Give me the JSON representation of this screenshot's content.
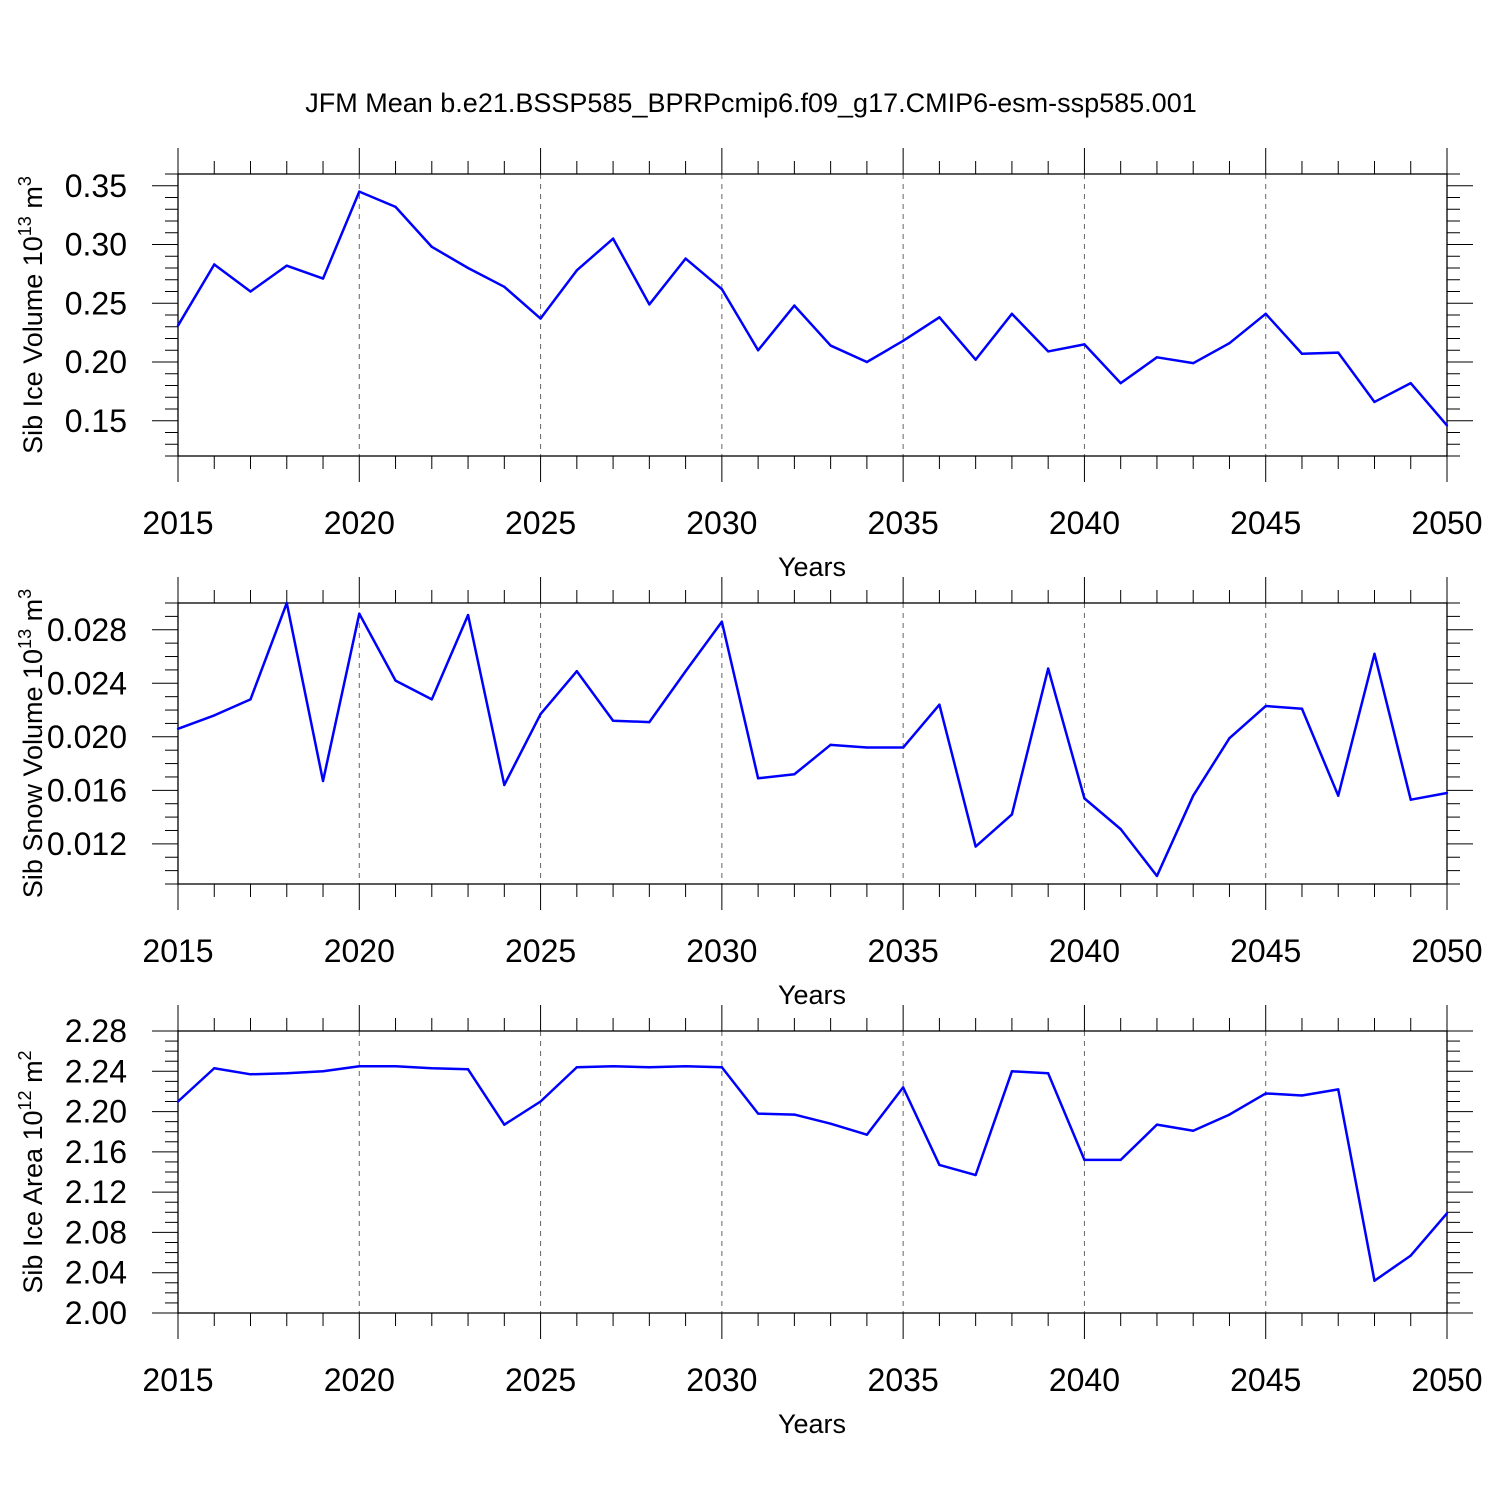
{
  "title": "JFM Mean b.e21.BSSP585_BPRPcmip6.f09_g17.CMIP6-esm-ssp585.001",
  "chart_data": [
    {
      "type": "line",
      "ylabel": "Sib Ice Volume 10",
      "ylabel_exp": "13",
      "ylabel_unit": " m",
      "ylabel_unit_exp": "3",
      "xlabel": "Years",
      "xlim": [
        2015,
        2050
      ],
      "ylim": [
        0.12,
        0.36
      ],
      "yticks": [
        0.15,
        0.2,
        0.25,
        0.3,
        0.35
      ],
      "ytick_labels": [
        "0.15",
        "0.20",
        "0.25",
        "0.30",
        "0.35"
      ],
      "yminor_step": 0.01,
      "xticks": [
        2015,
        2020,
        2025,
        2030,
        2035,
        2040,
        2045,
        2050
      ],
      "xtick_labels": [
        "2015",
        "2020",
        "2025",
        "2030",
        "2035",
        "2040",
        "2045",
        "2050"
      ],
      "color": "#0000ff",
      "x": [
        2015,
        2016,
        2017,
        2018,
        2019,
        2020,
        2021,
        2022,
        2023,
        2024,
        2025,
        2026,
        2027,
        2028,
        2029,
        2030,
        2031,
        2032,
        2033,
        2034,
        2035,
        2036,
        2037,
        2038,
        2039,
        2040,
        2041,
        2042,
        2043,
        2044,
        2045,
        2046,
        2047,
        2048,
        2049,
        2050
      ],
      "values": [
        0.231,
        0.283,
        0.26,
        0.282,
        0.271,
        0.345,
        0.332,
        0.298,
        0.28,
        0.264,
        0.237,
        0.278,
        0.305,
        0.249,
        0.288,
        0.262,
        0.21,
        0.248,
        0.214,
        0.2,
        0.218,
        0.238,
        0.202,
        0.241,
        0.209,
        0.215,
        0.182,
        0.204,
        0.199,
        0.216,
        0.241,
        0.207,
        0.208,
        0.166,
        0.182,
        0.146
      ]
    },
    {
      "type": "line",
      "ylabel": "Sib Snow Volume 10",
      "ylabel_exp": "13",
      "ylabel_unit": " m",
      "ylabel_unit_exp": "3",
      "xlabel": "Years",
      "xlim": [
        2015,
        2050
      ],
      "ylim": [
        0.009,
        0.03
      ],
      "yticks": [
        0.012,
        0.016,
        0.02,
        0.024,
        0.028
      ],
      "ytick_labels": [
        "0.012",
        "0.016",
        "0.020",
        "0.024",
        "0.028"
      ],
      "yminor_step": 0.001,
      "xticks": [
        2015,
        2020,
        2025,
        2030,
        2035,
        2040,
        2045,
        2050
      ],
      "xtick_labels": [
        "2015",
        "2020",
        "2025",
        "2030",
        "2035",
        "2040",
        "2045",
        "2050"
      ],
      "color": "#0000ff",
      "x": [
        2015,
        2016,
        2017,
        2018,
        2019,
        2020,
        2021,
        2022,
        2023,
        2024,
        2025,
        2026,
        2027,
        2028,
        2029,
        2030,
        2031,
        2032,
        2033,
        2034,
        2035,
        2036,
        2037,
        2038,
        2039,
        2040,
        2041,
        2042,
        2043,
        2044,
        2045,
        2046,
        2047,
        2048,
        2049,
        2050
      ],
      "values": [
        0.0206,
        0.0216,
        0.0228,
        0.03,
        0.0167,
        0.0292,
        0.0242,
        0.0228,
        0.0291,
        0.0164,
        0.0217,
        0.0249,
        0.0212,
        0.0211,
        0.0249,
        0.0286,
        0.0169,
        0.0172,
        0.0194,
        0.0192,
        0.0192,
        0.0224,
        0.0118,
        0.0142,
        0.0251,
        0.0154,
        0.0131,
        0.0096,
        0.0156,
        0.0199,
        0.0223,
        0.0221,
        0.0156,
        0.0262,
        0.0153,
        0.0158
      ]
    },
    {
      "type": "line",
      "ylabel": "Sib Ice Area 10",
      "ylabel_exp": "12",
      "ylabel_unit": " m",
      "ylabel_unit_exp": "2",
      "xlabel": "Years",
      "xlim": [
        2015,
        2050
      ],
      "ylim": [
        2.0,
        2.28
      ],
      "yticks": [
        2.0,
        2.04,
        2.08,
        2.12,
        2.16,
        2.2,
        2.24,
        2.28
      ],
      "ytick_labels": [
        "2.00",
        "2.04",
        "2.08",
        "2.12",
        "2.16",
        "2.20",
        "2.24",
        "2.28"
      ],
      "yminor_step": 0.01,
      "xticks": [
        2015,
        2020,
        2025,
        2030,
        2035,
        2040,
        2045,
        2050
      ],
      "xtick_labels": [
        "2015",
        "2020",
        "2025",
        "2030",
        "2035",
        "2040",
        "2045",
        "2050"
      ],
      "color": "#0000ff",
      "x": [
        2015,
        2016,
        2017,
        2018,
        2019,
        2020,
        2021,
        2022,
        2023,
        2024,
        2025,
        2026,
        2027,
        2028,
        2029,
        2030,
        2031,
        2032,
        2033,
        2034,
        2035,
        2036,
        2037,
        2038,
        2039,
        2040,
        2041,
        2042,
        2043,
        2044,
        2045,
        2046,
        2047,
        2048,
        2049,
        2050
      ],
      "values": [
        2.21,
        2.243,
        2.237,
        2.238,
        2.24,
        2.245,
        2.245,
        2.243,
        2.242,
        2.187,
        2.21,
        2.244,
        2.245,
        2.244,
        2.245,
        2.244,
        2.198,
        2.197,
        2.188,
        2.177,
        2.224,
        2.147,
        2.137,
        2.24,
        2.238,
        2.152,
        2.152,
        2.187,
        2.181,
        2.197,
        2.218,
        2.216,
        2.222,
        2.032,
        2.057,
        2.099
      ]
    }
  ]
}
